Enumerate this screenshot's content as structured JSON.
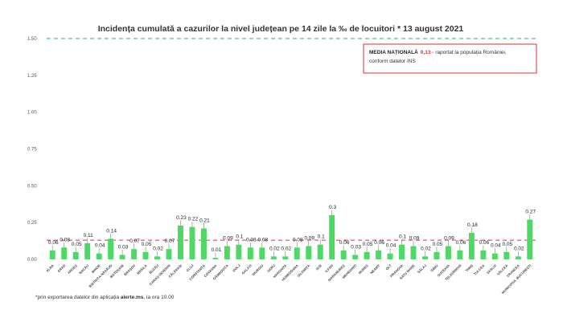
{
  "chart_data": {
    "type": "bar",
    "title": "Incidența cumulată a cazurilor la nivel județean pe 14 zile la ‰ de locuitori *  13 august 2021",
    "xlabel": "",
    "ylabel": "",
    "ylim": [
      0,
      1.5
    ],
    "yticks": [
      "0.00",
      "0.25",
      "0.50",
      "0.75",
      "1.00",
      "1.25",
      "1.50"
    ],
    "grid": false,
    "bar_color": "#4dd964",
    "label_line_color": "#7f7f7f",
    "categories": [
      "ALBA",
      "ARAD",
      "ARGEȘ",
      "BACĂU",
      "BIHOR",
      "BISTRIȚA-NĂSĂUD",
      "BOTOȘANI",
      "BRAȘOV",
      "BRĂILA",
      "BUZĂU",
      "CARAȘ-SEVERIN",
      "CĂLĂRAȘI",
      "CLUJ",
      "CONSTANȚA",
      "COVASNA",
      "DÂMBOVIȚA",
      "DOLJ",
      "GALAȚI",
      "GIURGIU",
      "GORJ",
      "HARGHITA",
      "HUNEDOARA",
      "IALOMIȚA",
      "IAȘI",
      "ILFOV",
      "MARAMUREȘ",
      "MEHEDINȚI",
      "MUREȘ",
      "NEAMȚ",
      "OLT",
      "PRAHOVA",
      "SATU MARE",
      "SĂLAJ",
      "SIBIU",
      "SUCEAVA",
      "TELEORMAN",
      "TIMIȘ",
      "TULCEA",
      "VASLUI",
      "VÂLCEA",
      "VRANCEA",
      "MUNICIPIUL BUCUREȘTI"
    ],
    "values": [
      0.06,
      0.08,
      0.05,
      0.11,
      0.04,
      0.14,
      0.03,
      0.07,
      0.05,
      0.02,
      0.07,
      0.23,
      0.22,
      0.21,
      0.01,
      0.09,
      0.1,
      0.08,
      0.08,
      0.02,
      0.02,
      0.08,
      0.09,
      0.1,
      0.3,
      0.06,
      0.03,
      0.05,
      0.06,
      0.04,
      0.1,
      0.09,
      0.02,
      0.05,
      0.09,
      0.06,
      0.18,
      0.06,
      0.04,
      0.05,
      0.02,
      0.27
    ],
    "labels": [
      "0.06",
      "0.08",
      "0.05",
      "0.11",
      "0.04",
      "0.14",
      "0.03",
      "0.07",
      "0.05",
      "0.02",
      "0.07",
      "0.23",
      "0.22",
      "0.21",
      "0.01",
      "0.09",
      "0.1",
      "0.08",
      "0.08",
      "0.02",
      "0.02",
      "0.08",
      "0.09",
      "0.1",
      "0.3",
      "0.06",
      "0.03",
      "0.05",
      "0.06",
      "0.04",
      "0.1",
      "0.09",
      "0.02",
      "0.05",
      "0.09",
      "0.06",
      "0.18",
      "0.06",
      "0.04",
      "0.05",
      "0.02",
      "0.27"
    ],
    "reference_lines": [
      {
        "value": 1.5,
        "color": "#3aa36a",
        "style": "dashed"
      },
      {
        "value": 0.13,
        "color": "#e03030",
        "style": "dashed"
      }
    ],
    "legend": {
      "position": "top-right",
      "border_color": "#e03030",
      "title": "MEDIA NAȚIONALĂ",
      "value": "0,13",
      "text1": " - raportat la populația României,",
      "text2": "conform datelor INS"
    },
    "footnote": {
      "prefix": "*prin exportarea datelor din aplicația ",
      "bold": "alerte.ms",
      "suffix": ", la ora 10.00"
    }
  }
}
